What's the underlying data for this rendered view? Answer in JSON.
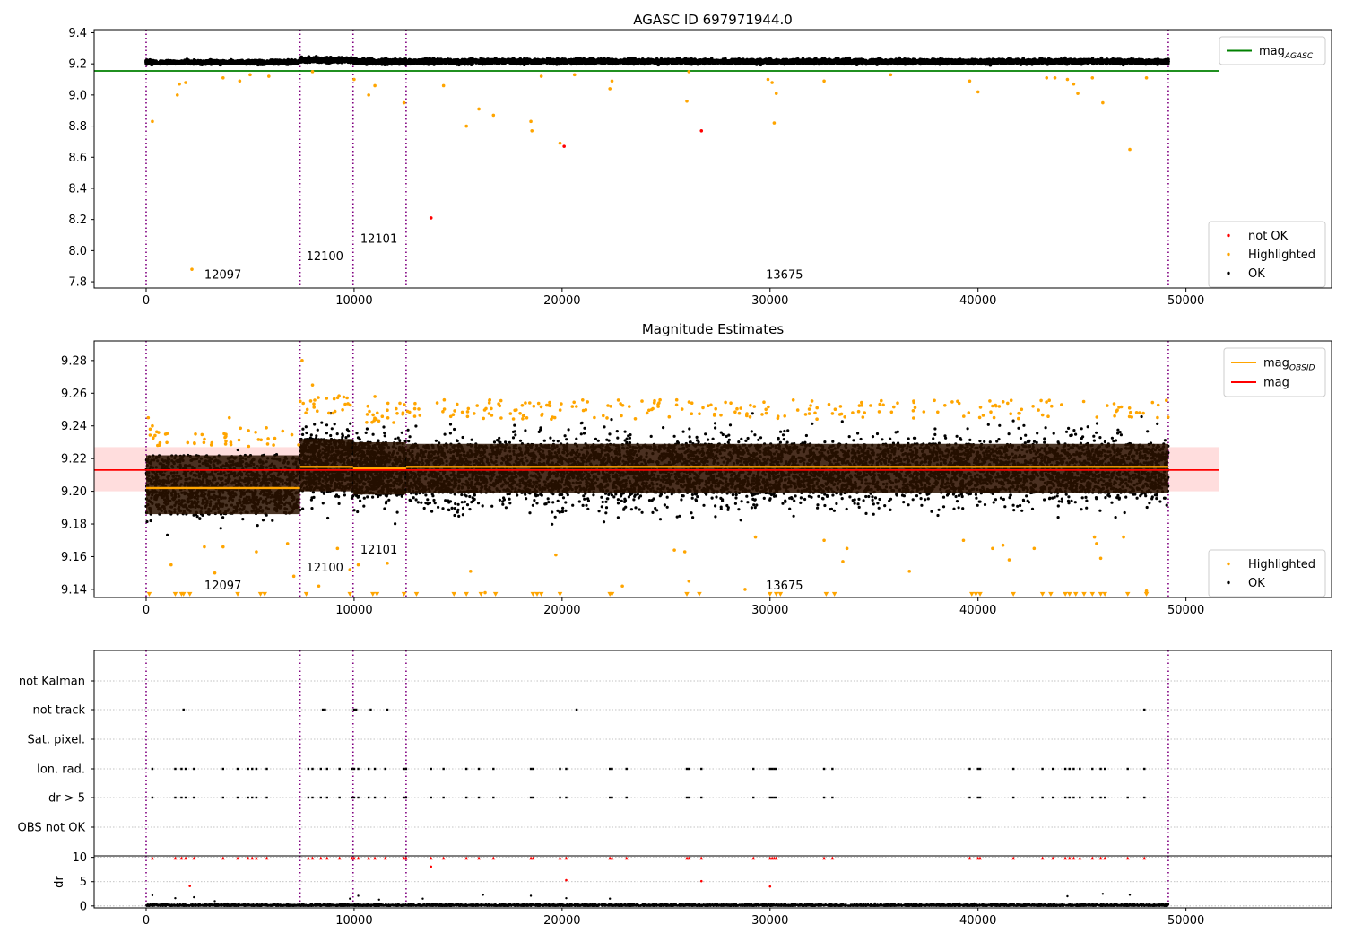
{
  "chart_data": [
    {
      "type": "scatter",
      "title": "AGASC ID 697971944.0",
      "xlim": [
        -2500,
        57000
      ],
      "ylim": [
        7.76,
        9.42
      ],
      "xticks": [
        0,
        10000,
        20000,
        30000,
        40000,
        50000
      ],
      "yticks": [
        7.8,
        8.0,
        8.2,
        8.4,
        8.6,
        8.8,
        9.0,
        9.2,
        9.4
      ],
      "grid": false,
      "mag_agasc_line": {
        "value": 9.155,
        "x_range": [
          -2500,
          51600
        ],
        "color": "#008000"
      },
      "obsid_boundaries": [
        0,
        7400,
        9950,
        12500,
        49150
      ],
      "obsid_labels": [
        {
          "text": "12097",
          "x": 2800,
          "y": 7.82
        },
        {
          "text": "12100",
          "x": 7700,
          "y": 7.94
        },
        {
          "text": "12101",
          "x": 10300,
          "y": 8.05
        },
        {
          "text": "13675",
          "x": 29800,
          "y": 7.82
        }
      ],
      "series": [
        {
          "name": "not OK",
          "color": "#ff0000",
          "points": [
            [
              20100,
              8.67
            ],
            [
              26700,
              8.77
            ],
            [
              13700,
              8.21
            ]
          ]
        },
        {
          "name": "Highlighted",
          "color": "#ffa500",
          "points": [
            [
              300,
              8.83
            ],
            [
              1500,
              9.0
            ],
            [
              1600,
              9.07
            ],
            [
              1900,
              9.08
            ],
            [
              2200,
              7.88
            ],
            [
              3700,
              9.11
            ],
            [
              4500,
              9.09
            ],
            [
              5000,
              9.13
            ],
            [
              5900,
              9.12
            ],
            [
              8000,
              9.15
            ],
            [
              10000,
              9.1
            ],
            [
              10700,
              9.0
            ],
            [
              11000,
              9.06
            ],
            [
              12400,
              8.95
            ],
            [
              14300,
              9.06
            ],
            [
              15400,
              8.8
            ],
            [
              16000,
              8.91
            ],
            [
              16700,
              8.87
            ],
            [
              18500,
              8.83
            ],
            [
              18550,
              8.77
            ],
            [
              19000,
              9.12
            ],
            [
              19900,
              8.69
            ],
            [
              20600,
              9.13
            ],
            [
              22300,
              9.04
            ],
            [
              22400,
              9.09
            ],
            [
              26000,
              8.96
            ],
            [
              26100,
              9.15
            ],
            [
              29900,
              9.1
            ],
            [
              30100,
              9.08
            ],
            [
              30200,
              8.82
            ],
            [
              30300,
              9.01
            ],
            [
              32600,
              9.09
            ],
            [
              35800,
              9.13
            ],
            [
              39600,
              9.09
            ],
            [
              40000,
              9.02
            ],
            [
              43300,
              9.11
            ],
            [
              43700,
              9.11
            ],
            [
              44300,
              9.1
            ],
            [
              44600,
              9.07
            ],
            [
              44800,
              9.01
            ],
            [
              45500,
              9.11
            ],
            [
              46000,
              8.95
            ],
            [
              47300,
              8.65
            ],
            [
              48100,
              9.11
            ]
          ]
        },
        {
          "name": "OK",
          "color": "#000000",
          "segments": [
            {
              "x": [
                0,
                7400
              ],
              "y": [
                9.19,
                9.23
              ],
              "count": 900
            },
            {
              "x": [
                7400,
                9950
              ],
              "y": [
                9.2,
                9.25
              ],
              "count": 500
            },
            {
              "x": [
                9950,
                12500
              ],
              "y": [
                9.19,
                9.24
              ],
              "count": 500
            },
            {
              "x": [
                12500,
                49150
              ],
              "y": [
                9.19,
                9.24
              ],
              "count": 4500
            }
          ]
        }
      ],
      "legends": [
        {
          "position": "upper-right",
          "entries": [
            {
              "label": "mag",
              "subscript": "AGASC",
              "marker": "line",
              "color": "#008000"
            }
          ]
        },
        {
          "position": "lower-right",
          "entries": [
            {
              "label": "not OK",
              "marker": "dot",
              "color": "#ff0000"
            },
            {
              "label": "Highlighted",
              "marker": "dot",
              "color": "#ffa500"
            },
            {
              "label": "OK",
              "marker": "dot",
              "color": "#000000"
            }
          ]
        }
      ]
    },
    {
      "type": "scatter",
      "title": "Magnitude Estimates",
      "xlim": [
        -2500,
        57000
      ],
      "ylim": [
        9.135,
        9.292
      ],
      "xticks": [
        0,
        10000,
        20000,
        30000,
        40000,
        50000
      ],
      "yticks": [
        9.14,
        9.16,
        9.18,
        9.2,
        9.22,
        9.24,
        9.26,
        9.28
      ],
      "grid": false,
      "mag_band": {
        "center": 9.213,
        "low": 9.2,
        "high": 9.227,
        "x_range": [
          -2500,
          51600
        ],
        "line_color": "#ff0000",
        "band_color": "#ffdddd"
      },
      "mag_obsid": [
        {
          "x": [
            0,
            7400
          ],
          "value": 9.202
        },
        {
          "x": [
            7400,
            9950
          ],
          "value": 9.215
        },
        {
          "x": [
            9950,
            12500
          ],
          "value": 9.214
        },
        {
          "x": [
            12500,
            49150
          ],
          "value": 9.215
        }
      ],
      "obsid_boundaries": [
        0,
        7400,
        9950,
        12500,
        49150
      ],
      "obsid_labels": [
        {
          "text": "12097",
          "x": 2800,
          "y": 9.14
        },
        {
          "text": "12100",
          "x": 7700,
          "y": 9.151
        },
        {
          "text": "12101",
          "x": 10300,
          "y": 9.162
        },
        {
          "text": "13675",
          "x": 29800,
          "y": 9.14
        }
      ],
      "series": [
        {
          "name": "Highlighted",
          "color": "#ffa500",
          "description_points": [
            [
              100,
              9.245
            ],
            [
              300,
              9.24
            ],
            [
              600,
              9.236
            ],
            [
              1200,
              9.155
            ],
            [
              2800,
              9.166
            ],
            [
              3300,
              9.15
            ],
            [
              3700,
              9.166
            ],
            [
              4000,
              9.245
            ],
            [
              5300,
              9.163
            ],
            [
              6800,
              9.168
            ],
            [
              7100,
              9.148
            ],
            [
              7500,
              9.28
            ],
            [
              8000,
              9.265
            ],
            [
              8300,
              9.142
            ],
            [
              9200,
              9.165
            ],
            [
              9800,
              9.152
            ],
            [
              10200,
              9.155
            ],
            [
              11000,
              9.258
            ],
            [
              11600,
              9.156
            ],
            [
              15600,
              9.151
            ],
            [
              16300,
              9.138
            ],
            [
              19700,
              9.161
            ],
            [
              22900,
              9.142
            ],
            [
              25400,
              9.164
            ],
            [
              25900,
              9.163
            ],
            [
              26100,
              9.145
            ],
            [
              28800,
              9.14
            ],
            [
              29300,
              9.172
            ],
            [
              32600,
              9.17
            ],
            [
              33500,
              9.157
            ],
            [
              33700,
              9.165
            ],
            [
              36700,
              9.151
            ],
            [
              39300,
              9.17
            ],
            [
              40700,
              9.165
            ],
            [
              41200,
              9.167
            ],
            [
              41500,
              9.158
            ],
            [
              42700,
              9.165
            ],
            [
              45600,
              9.172
            ],
            [
              45700,
              9.168
            ],
            [
              45900,
              9.159
            ],
            [
              47000,
              9.172
            ],
            [
              48100,
              9.139
            ]
          ]
        },
        {
          "name": "OK",
          "color": "#000000",
          "segments": [
            {
              "x": [
                0,
                7400
              ],
              "y": [
                9.17,
                9.235
              ],
              "core": [
                9.186,
                9.222
              ],
              "count": 1300
            },
            {
              "x": [
                7400,
                9950
              ],
              "y": [
                9.18,
                9.255
              ],
              "core": [
                9.2,
                9.232
              ],
              "count": 700
            },
            {
              "x": [
                9950,
                12500
              ],
              "y": [
                9.175,
                9.25
              ],
              "core": [
                9.198,
                9.23
              ],
              "count": 700
            },
            {
              "x": [
                12500,
                49150
              ],
              "y": [
                9.172,
                9.252
              ],
              "core": [
                9.199,
                9.229
              ],
              "count": 6500
            }
          ]
        }
      ],
      "clipped_markers": {
        "color": "#ffa500",
        "y": 9.137,
        "x": [
          150,
          1400,
          1700,
          1800,
          2100,
          4400,
          5500,
          5700,
          7700,
          9800,
          10900,
          11100,
          12400,
          13000,
          14800,
          15400,
          16100,
          16800,
          18600,
          18800,
          19000,
          19900,
          22300,
          22400,
          26000,
          26600,
          30000,
          30300,
          30500,
          32700,
          33100,
          39700,
          39900,
          40100,
          41700,
          43100,
          43500,
          44200,
          44400,
          44700,
          45100,
          45500,
          45900,
          46100,
          47200,
          48100
        ]
      },
      "legends": [
        {
          "position": "upper-right",
          "entries": [
            {
              "label": "mag",
              "subscript": "OBSID",
              "marker": "line",
              "color": "#ffa500"
            },
            {
              "label": "mag",
              "marker": "line",
              "color": "#ff0000"
            }
          ]
        },
        {
          "position": "lower-right",
          "entries": [
            {
              "label": "Highlighted",
              "marker": "dot",
              "color": "#ffa500"
            },
            {
              "label": "OK",
              "marker": "dot",
              "color": "#000000"
            }
          ]
        }
      ]
    },
    {
      "type": "scatter",
      "title": "",
      "xlim": [
        -2500,
        57000
      ],
      "flag_rows": [
        "not Kalman",
        "not track",
        "Sat. pixel.",
        "Ion. rad.",
        "dr > 5",
        "OBS not OK"
      ],
      "grid": true,
      "obsid_boundaries": [
        0,
        7400,
        9950,
        12500,
        49150
      ],
      "flags": {
        "not track": [
          1800,
          8500,
          8600,
          10000,
          10100,
          10800,
          11600,
          20700,
          48000
        ],
        "Ion. rad.": [
          300,
          1400,
          1700,
          1900,
          2300,
          3700,
          4400,
          4900,
          5100,
          5300,
          5800,
          7800,
          8000,
          8400,
          8700,
          9300,
          9900,
          10000,
          10200,
          10700,
          11000,
          11500,
          12400,
          12500,
          13700,
          14300,
          15400,
          16000,
          16700,
          18500,
          18600,
          19900,
          20200,
          22300,
          22400,
          23100,
          26000,
          26100,
          26700,
          29200,
          30000,
          30100,
          30200,
          30300,
          32600,
          33000,
          39600,
          40000,
          40100,
          41700,
          43100,
          43600,
          44200,
          44400,
          44600,
          44900,
          45500,
          45900,
          46100,
          47200,
          48000
        ],
        "dr > 5": [
          300,
          1400,
          1700,
          1900,
          2300,
          3700,
          4400,
          4900,
          5100,
          5300,
          5800,
          7800,
          8000,
          8400,
          8700,
          9300,
          9900,
          10000,
          10200,
          10700,
          11000,
          11500,
          12400,
          12500,
          13700,
          14300,
          15400,
          16000,
          16700,
          18500,
          18600,
          19900,
          20200,
          22300,
          22400,
          23100,
          26000,
          26100,
          26700,
          29200,
          30000,
          30100,
          30200,
          30300,
          32600,
          33000,
          39600,
          40000,
          40100,
          41700,
          43100,
          43600,
          44200,
          44400,
          44600,
          44900,
          45500,
          45900,
          46100,
          47200,
          48000
        ]
      }
    },
    {
      "type": "scatter",
      "title": "",
      "xlim": [
        -2500,
        57000
      ],
      "ylim": [
        -0.4,
        10.3
      ],
      "ylabel": "dr",
      "yticks": [
        0,
        5,
        10
      ],
      "xticks": [
        0,
        10000,
        20000,
        30000,
        40000,
        50000
      ],
      "grid": true,
      "obsid_boundaries": [
        0,
        7400,
        9950,
        12500,
        49150
      ],
      "capped_value": 9.85,
      "capped_color": "#ff0000",
      "capped_x": [
        300,
        1400,
        1700,
        1900,
        2300,
        3700,
        4400,
        4900,
        5100,
        5300,
        5800,
        7800,
        8000,
        8400,
        8700,
        9300,
        9900,
        10000,
        10200,
        10700,
        11000,
        11500,
        12400,
        12500,
        13700,
        14300,
        15400,
        16000,
        16700,
        18500,
        18600,
        19900,
        20200,
        22300,
        22400,
        23100,
        26000,
        26100,
        26700,
        29200,
        30000,
        30100,
        30200,
        30300,
        32600,
        33000,
        39600,
        40000,
        40100,
        41700,
        43100,
        43600,
        44200,
        44400,
        44600,
        44900,
        45500,
        45900,
        46100,
        47200,
        48000
      ],
      "red_points": [
        [
          2100,
          4.1
        ],
        [
          13700,
          8.1
        ],
        [
          20200,
          5.3
        ],
        [
          26700,
          5.1
        ],
        [
          30000,
          4.0
        ]
      ],
      "ok_band": {
        "x": [
          0,
          49150
        ],
        "y": [
          0,
          0.6
        ],
        "count": 5000
      },
      "ok_extra_points": [
        [
          300,
          2.2
        ],
        [
          1400,
          1.6
        ],
        [
          2300,
          1.8
        ],
        [
          3300,
          1.0
        ],
        [
          9800,
          1.5
        ],
        [
          10200,
          2.1
        ],
        [
          11200,
          1.3
        ],
        [
          13300,
          1.5
        ],
        [
          16200,
          2.3
        ],
        [
          18500,
          2.1
        ],
        [
          20200,
          1.6
        ],
        [
          22300,
          1.5
        ],
        [
          44300,
          2.0
        ],
        [
          46000,
          2.5
        ],
        [
          47300,
          2.3
        ]
      ]
    }
  ]
}
